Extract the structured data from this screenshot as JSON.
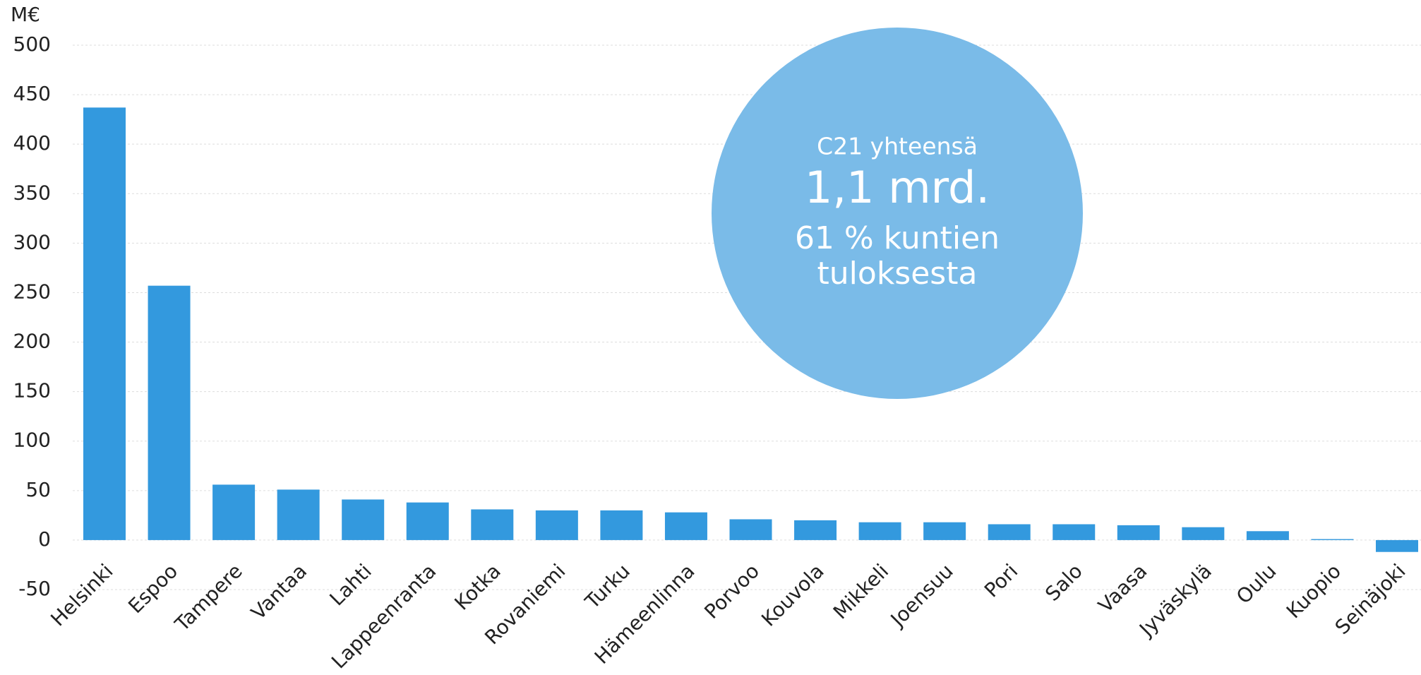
{
  "chart_data": {
    "type": "bar",
    "y_label": "M€",
    "categories": [
      "Helsinki",
      "Espoo",
      "Tampere",
      "Vantaa",
      "Lahti",
      "Lappeenranta",
      "Kotka",
      "Rovaniemi",
      "Turku",
      "Hämeenlinna",
      "Porvoo",
      "Kouvola",
      "Mikkeli",
      "Joensuu",
      "Pori",
      "Salo",
      "Vaasa",
      "Jyväskylä",
      "Oulu",
      "Kuopio",
      "Seinäjoki"
    ],
    "values": [
      437,
      257,
      56,
      51,
      41,
      38,
      31,
      30,
      30,
      28,
      21,
      20,
      18,
      18,
      16,
      16,
      15,
      13,
      9,
      1,
      -12
    ],
    "color": "#3399de",
    "ylim": [
      -50,
      500
    ],
    "yticks": [
      -50,
      0,
      50,
      100,
      150,
      200,
      250,
      300,
      350,
      400,
      450,
      500
    ],
    "grid": true,
    "annotation": {
      "color": "#7abbe8",
      "lines": [
        "C21 yhteensä",
        "1,1 mrd.",
        "61 % kuntien",
        "tuloksesta"
      ]
    }
  }
}
